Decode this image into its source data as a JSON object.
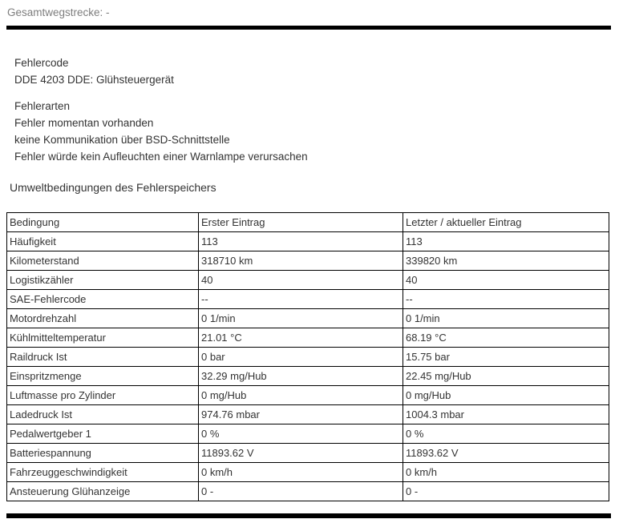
{
  "page": {
    "top_label": "Gesamtwegstrecke: -",
    "fault_code": {
      "heading": "Fehlercode",
      "code": "DDE 4203 DDE: Glühsteuergerät"
    },
    "fault_types": {
      "heading": "Fehlerarten",
      "items": [
        "Fehler momentan vorhanden",
        "keine Kommunikation über BSD-Schnittstelle",
        "Fehler würde kein Aufleuchten einer Warnlampe verursachen"
      ]
    },
    "conditions_heading": "Umweltbedingungen des Fehlerspeichers"
  },
  "table": {
    "headers": [
      "Bedingung",
      "Erster Eintrag",
      "Letzter / aktueller Eintrag"
    ],
    "rows": [
      [
        "Häufigkeit",
        "113",
        "113"
      ],
      [
        "Kilometerstand",
        "318710 km",
        "339820 km"
      ],
      [
        "Logistikzähler",
        "40",
        "40"
      ],
      [
        "SAE-Fehlercode",
        "--",
        "--"
      ],
      [
        "Motordrehzahl",
        "0 1/min",
        "0 1/min"
      ],
      [
        "Kühlmitteltemperatur",
        "21.01 °C",
        "68.19 °C"
      ],
      [
        "Raildruck Ist",
        "0 bar",
        "15.75 bar"
      ],
      [
        "Einspritzmenge",
        "32.29 mg/Hub",
        "22.45 mg/Hub"
      ],
      [
        "Luftmasse pro Zylinder",
        "0 mg/Hub",
        "0 mg/Hub"
      ],
      [
        "Ladedruck Ist",
        "974.76 mbar",
        "1004.3 mbar"
      ],
      [
        "Pedalwertgeber 1",
        "0 %",
        "0 %"
      ],
      [
        "Batteriespannung",
        "11893.62 V",
        "11893.62 V"
      ],
      [
        "Fahrzeuggeschwindigkeit",
        "0 km/h",
        "0 km/h"
      ],
      [
        "Ansteuerung Glühanzeige",
        "0 -",
        "0 -"
      ]
    ]
  },
  "colors": {
    "text": "#333333",
    "muted_text": "#7d7d7d",
    "rule": "#000000",
    "border": "#000000"
  }
}
